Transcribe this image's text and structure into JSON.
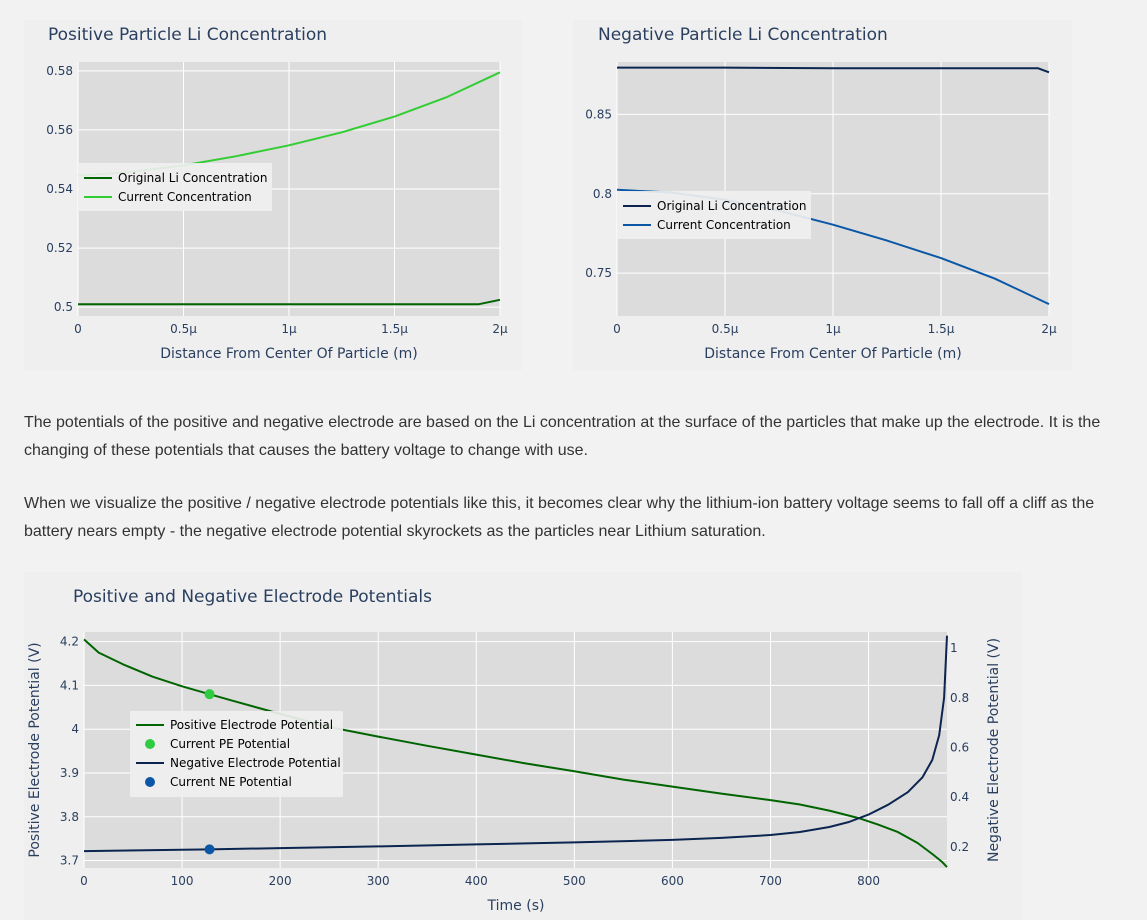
{
  "paragraphs": [
    "The potentials of the positive and negative electrode are based on the Li concentration at the surface of the particles that make up the electrode. It is the changing of these potentials that causes the battery voltage to change with use.",
    "When we visualize the positive / negative electrode potentials like this, it becomes clear why the lithium-ion battery voltage seems to fall off a cliff as the battery nears empty - the negative electrode potential skyrockets as the particles near Lithium saturation."
  ],
  "colors": {
    "original_positive": "#006400",
    "current_positive": "#32cd32",
    "original_negative": "#0b2550",
    "current_negative": "#0b57a6",
    "pe_marker": "#2ecc40",
    "ne_marker": "#0b57a6",
    "plot_bg": "#dcdcdc",
    "panel_bg": "#efefef"
  },
  "chart_data": [
    {
      "type": "line",
      "title": "Positive Particle Li Concentration",
      "xlabel": "Distance From Center Of Particle (m)",
      "ylabel": "",
      "xlim": [
        0,
        2
      ],
      "ylim": [
        0.497,
        0.583
      ],
      "x_ticks": [
        0,
        0.5,
        1,
        1.5,
        2
      ],
      "x_tick_labels": [
        "0",
        "0.5μ",
        "1μ",
        "1.5μ",
        "2μ"
      ],
      "y_ticks": [
        0.5,
        0.52,
        0.54,
        0.56,
        0.58
      ],
      "y_tick_labels": [
        "0.5",
        "0.52",
        "0.54",
        "0.56",
        "0.58"
      ],
      "legend": "left",
      "series": [
        {
          "name": "Original Li Concentration",
          "x": [
            0,
            0.5,
            1,
            1.5,
            1.9,
            2
          ],
          "y": [
            0.501,
            0.501,
            0.501,
            0.501,
            0.501,
            0.5025
          ]
        },
        {
          "name": "Current Concentration",
          "x": [
            0,
            0.25,
            0.5,
            0.75,
            1,
            1.25,
            1.5,
            1.75,
            2
          ],
          "y": [
            0.5445,
            0.5458,
            0.548,
            0.5511,
            0.5548,
            0.5592,
            0.5645,
            0.5712,
            0.5795
          ]
        }
      ]
    },
    {
      "type": "line",
      "title": "Negative Particle Li Concentration",
      "xlabel": "Distance From Center Of Particle (m)",
      "ylabel": "",
      "xlim": [
        0,
        2
      ],
      "ylim": [
        0.723,
        0.883
      ],
      "x_ticks": [
        0,
        0.5,
        1,
        1.5,
        2
      ],
      "x_tick_labels": [
        "0",
        "0.5μ",
        "1μ",
        "1.5μ",
        "2μ"
      ],
      "y_ticks": [
        0.75,
        0.8,
        0.85
      ],
      "y_tick_labels": [
        "0.75",
        "0.8",
        "0.85"
      ],
      "legend": "left",
      "series": [
        {
          "name": "Original Li Concentration",
          "x": [
            0,
            0.5,
            1,
            1.5,
            1.95,
            2
          ],
          "y": [
            0.8795,
            0.8795,
            0.879,
            0.879,
            0.879,
            0.8765
          ]
        },
        {
          "name": "Current Concentration",
          "x": [
            0,
            0.25,
            0.5,
            0.75,
            1,
            1.25,
            1.5,
            1.75,
            2
          ],
          "y": [
            0.8025,
            0.8008,
            0.7962,
            0.7893,
            0.7805,
            0.7705,
            0.7595,
            0.7465,
            0.7305
          ]
        }
      ]
    },
    {
      "type": "line",
      "title": "Positive and Negative Electrode Potentials",
      "xlabel": "Time (s)",
      "ylabel": "Positive Electrode Potential (V)",
      "y2label": "Negative Electrode Potential (V)",
      "xlim": [
        0,
        880
      ],
      "ylim": [
        3.683,
        4.222
      ],
      "y2lim": [
        0.115,
        1.065
      ],
      "x_ticks": [
        0,
        100,
        200,
        300,
        400,
        500,
        600,
        700,
        800
      ],
      "x_tick_labels": [
        "0",
        "100",
        "200",
        "300",
        "400",
        "500",
        "600",
        "700",
        "800"
      ],
      "y_ticks": [
        3.7,
        3.8,
        3.9,
        4,
        4.1,
        4.2
      ],
      "y_tick_labels": [
        "3.7",
        "3.8",
        "3.9",
        "4",
        "4.1",
        "4.2"
      ],
      "y2_ticks": [
        0.2,
        0.4,
        0.6,
        0.8,
        1
      ],
      "y2_tick_labels": [
        "0.2",
        "0.4",
        "0.6",
        "0.8",
        "1"
      ],
      "legend": "top-left",
      "series": [
        {
          "name": "Positive Electrode Potential",
          "axis": "y",
          "mode": "line",
          "x": [
            0,
            5,
            15,
            40,
            70,
            100,
            128,
            150,
            200,
            250,
            300,
            350,
            400,
            450,
            500,
            550,
            600,
            650,
            700,
            730,
            760,
            790,
            810,
            830,
            850,
            865,
            875,
            880
          ],
          "y": [
            4.205,
            4.195,
            4.175,
            4.148,
            4.12,
            4.098,
            4.08,
            4.066,
            4.035,
            4.005,
            3.983,
            3.962,
            3.942,
            3.922,
            3.904,
            3.885,
            3.869,
            3.853,
            3.838,
            3.828,
            3.814,
            3.797,
            3.782,
            3.765,
            3.74,
            3.715,
            3.697,
            3.685
          ]
        },
        {
          "name": "Current PE Potential",
          "axis": "y",
          "mode": "marker",
          "x": [
            128
          ],
          "y": [
            4.08
          ]
        },
        {
          "name": "Negative Electrode Potential",
          "axis": "y2",
          "mode": "line",
          "x": [
            0,
            128,
            200,
            300,
            400,
            500,
            600,
            650,
            700,
            730,
            760,
            780,
            800,
            820,
            840,
            855,
            865,
            872,
            877,
            880
          ],
          "y": [
            0.183,
            0.19,
            0.195,
            0.202,
            0.21,
            0.218,
            0.228,
            0.236,
            0.248,
            0.26,
            0.28,
            0.3,
            0.33,
            0.37,
            0.42,
            0.48,
            0.55,
            0.65,
            0.8,
            1.05
          ]
        },
        {
          "name": "Current NE Potential",
          "axis": "y2",
          "mode": "marker",
          "x": [
            128
          ],
          "y": [
            0.19
          ]
        }
      ]
    }
  ]
}
